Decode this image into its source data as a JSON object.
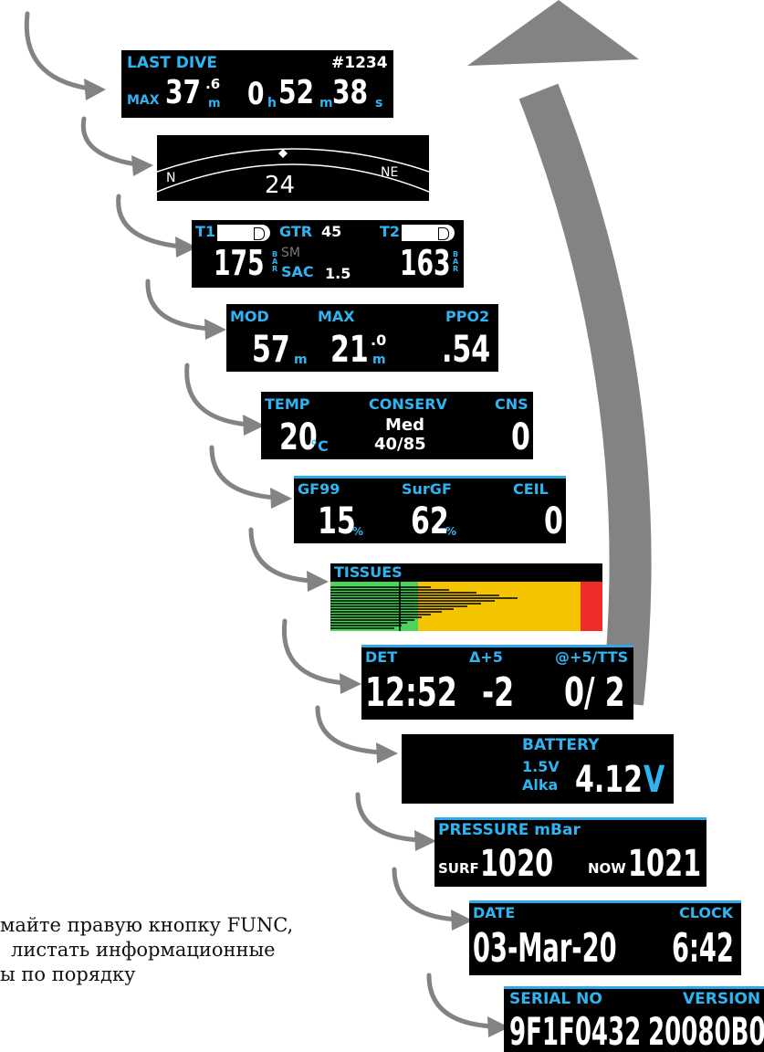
{
  "caption": {
    "line1": "майте правую кнопку FUNC,",
    "line2": "листать информационные",
    "line3": "ы по порядку"
  },
  "last_dive": {
    "label": "LAST DIVE",
    "dive_no": "#1234",
    "max_label": "MAX",
    "max_int": "37",
    "max_frac": ".6",
    "max_unit": "m",
    "hours": "0",
    "h": "h",
    "minutes": "52",
    "m": "m",
    "seconds": "38",
    "s": "s"
  },
  "compass": {
    "left": "N",
    "right": "NE",
    "heading": "24"
  },
  "gas": {
    "t1": "T1",
    "gtr_label": "GTR",
    "gtr": "45",
    "t2": "T2",
    "p1": "175",
    "unit": "BAR",
    "sm": "SM",
    "sac_label": "SAC",
    "sac": "1.5",
    "p2": "163"
  },
  "mod": {
    "mod_label": "MOD",
    "max_label": "MAX",
    "ppo2_label": "PPO2",
    "mod": "57",
    "mod_unit": "m",
    "max_int": "21",
    "max_frac": ".0",
    "max_unit": "m",
    "ppo2": ".54"
  },
  "temp": {
    "temp_label": "TEMP",
    "conserv_label": "CONSERV",
    "cns_label": "CNS",
    "temp": "20",
    "temp_unit": "°C",
    "conserv_level": "Med",
    "conserv_gf": "40/85",
    "cns": "0"
  },
  "gf": {
    "gf99_label": "GF99",
    "surgf_label": "SurGF",
    "ceil_label": "CEIL",
    "gf99": "15",
    "surgf": "62",
    "pct": "%",
    "ceil": "0"
  },
  "tissues": {
    "label": "TISSUES"
  },
  "det": {
    "det_label": "DET",
    "delta_label": "Δ+5",
    "tts_label": "@+5/TTS",
    "det": "12:52",
    "delta": "-2",
    "tts": "0/ 2"
  },
  "battery": {
    "label": "BATTERY",
    "voltage_type": "1.5V",
    "type": "Alka",
    "value": "4.12",
    "unit": "V"
  },
  "pressure": {
    "label": "PRESSURE mBar",
    "surf_label": "SURF",
    "surf": "1020",
    "now_label": "NOW",
    "now": "1021"
  },
  "date": {
    "date_label": "DATE",
    "clock_label": "CLOCK",
    "date": "03-Mar-20",
    "time": "6:42"
  },
  "serial": {
    "serial_label": "SERIAL NO",
    "version_label": "VERSION",
    "serial": "9F1F0432",
    "version": "20080B0"
  },
  "colors": {
    "accent_blue": "#2fb4f2",
    "arrow_gray": "#808080",
    "tissue_green": "#4cd35a",
    "tissue_yellow": "#f5c400",
    "tissue_red": "#ef2b2b"
  }
}
